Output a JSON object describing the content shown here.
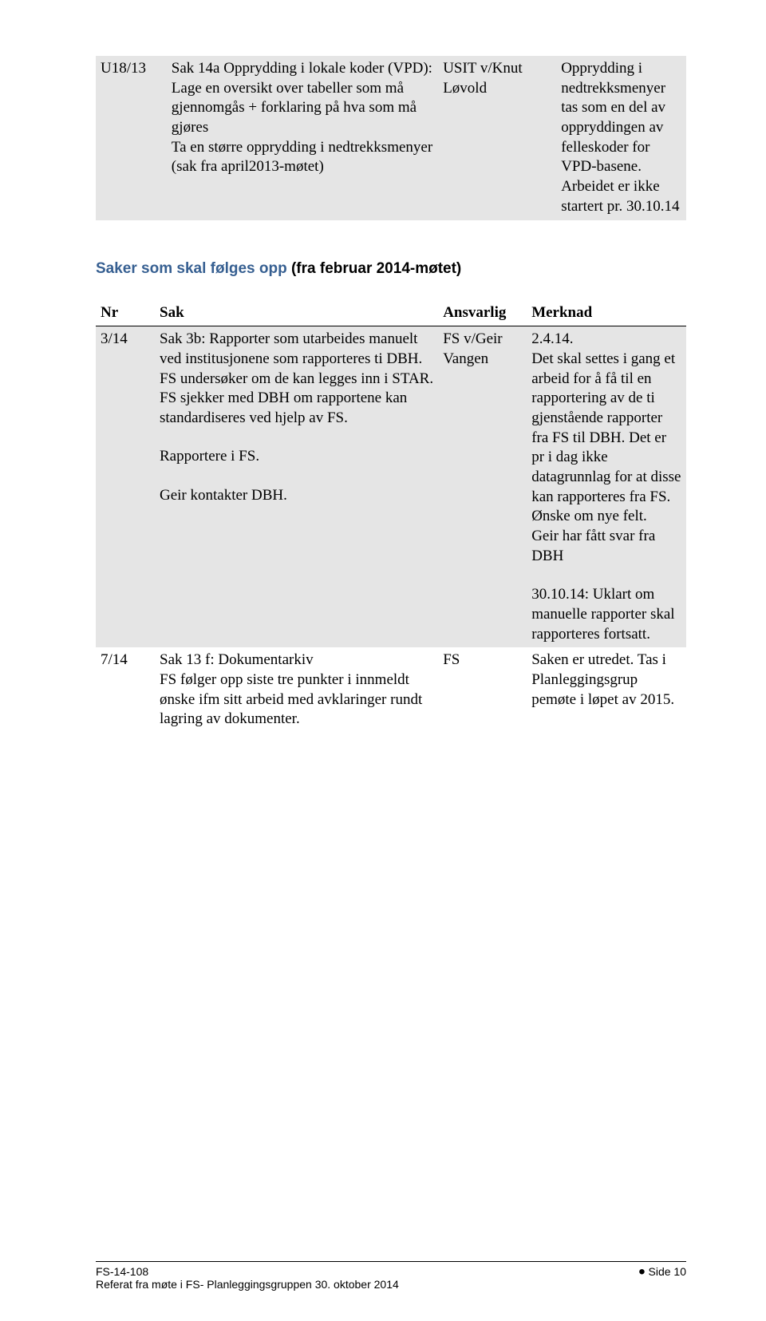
{
  "table1": {
    "row": {
      "nr": "U18/13",
      "sak": "Sak 14a Opprydding i lokale koder (VPD):\nLage en oversikt over tabeller som må gjennomgås + forklaring på hva som må gjøres\nTa en større opprydding i nedtrekksmenyer (sak fra april2013-møtet)",
      "ansvarlig": "USIT v/Knut Løvold",
      "merknad": "Opprydding i nedtrekksmenyer tas som en del av oppryddingen av felleskoder for VPD-basene. Arbeidet er ikke startert pr. 30.10.14"
    }
  },
  "section_heading": {
    "blue": "Saker som skal følges opp ",
    "black": "(fra februar 2014-møtet)"
  },
  "table2": {
    "headers": {
      "nr": "Nr",
      "sak": "Sak",
      "ansvarlig": "Ansvarlig",
      "merknad": "Merknad"
    },
    "row314": {
      "nr": "3/14",
      "sak_p1": "Sak 3b: Rapporter som utarbeides manuelt ved institusjonene som rapporteres ti DBH. FS undersøker om de kan legges inn i STAR.",
      "sak_p2": "FS sjekker med DBH om rapportene kan standardiseres ved hjelp av FS.",
      "sak_p3": "Rapportere i FS.",
      "sak_p4": "Geir kontakter DBH.",
      "ansvarlig": "FS v/Geir Vangen",
      "merknad_p1": "2.4.14.",
      "merknad_p2": "Det skal settes i gang et arbeid for å få til en rapportering av de ti gjenstående rapporter fra FS til DBH. Det er pr i dag ikke datagrunnlag for at disse kan rapporteres fra FS.",
      "merknad_p3": "Ønske om nye felt.",
      "merknad_p4": "Geir har fått svar fra DBH",
      "merknad_p5": "30.10.14: Uklart om manuelle rapporter skal rapporteres fortsatt."
    },
    "row714": {
      "nr": "7/14",
      "sak": "Sak 13 f: Dokumentarkiv\nFS følger opp siste tre punkter i innmeldt ønske ifm sitt arbeid med avklaringer rundt lagring av dokumenter.",
      "ansvarlig": "FS",
      "merknad": "Saken er utredet. Tas i Planleggingsgrup pemøte i løpet av 2015."
    }
  },
  "footer": {
    "left_line1": "FS-14-108",
    "left_line2": "Referat fra møte i FS- Planleggingsgruppen 30. oktober 2014",
    "right": "Side 10"
  }
}
